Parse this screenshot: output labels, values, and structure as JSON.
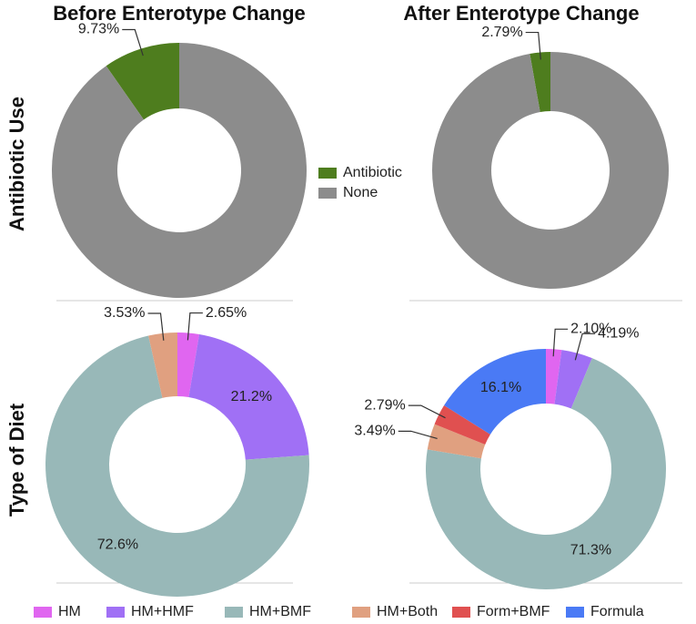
{
  "column_titles": [
    "Before Enterotype Change",
    "After Enterotype Change"
  ],
  "row_titles": [
    "Antibiotic Use",
    "Type of Diet"
  ],
  "chart_data": [
    {
      "type": "pie",
      "direction": "counterclockwise",
      "categories": [
        "Antibiotic",
        "None"
      ],
      "values": [
        9.73,
        90.27
      ],
      "value_labels": [
        "9.73%",
        null
      ],
      "colors": [
        "#4e7d1e",
        "#8c8c8c"
      ]
    },
    {
      "type": "pie",
      "direction": "counterclockwise",
      "categories": [
        "Antibiotic",
        "None"
      ],
      "values": [
        2.79,
        97.21
      ],
      "value_labels": [
        "2.79%",
        null
      ],
      "colors": [
        "#4e7d1e",
        "#8c8c8c"
      ]
    },
    {
      "type": "pie",
      "direction": "clockwise",
      "categories": [
        "HM",
        "HM+HMF",
        "HM+BMF",
        "HM+Both"
      ],
      "values": [
        2.65,
        21.2,
        72.6,
        3.53
      ],
      "value_labels": [
        "2.65%",
        "21.2%",
        "72.6%",
        "3.53%"
      ],
      "colors": [
        "#e066f0",
        "#a070f5",
        "#98b8b8",
        "#e0a080"
      ]
    },
    {
      "type": "pie",
      "direction": "clockwise",
      "categories": [
        "HM",
        "HM+HMF",
        "HM+BMF",
        "HM+Both",
        "Form+BMF",
        "Formula"
      ],
      "values": [
        2.1,
        4.19,
        71.3,
        3.49,
        2.79,
        16.1
      ],
      "value_labels": [
        "2.10%",
        "4.19%",
        "71.3%",
        "3.49%",
        "2.79%",
        "16.1%"
      ],
      "colors": [
        "#e066f0",
        "#a070f5",
        "#98b8b8",
        "#e0a080",
        "#e05050",
        "#4a7af5"
      ]
    }
  ]
}
